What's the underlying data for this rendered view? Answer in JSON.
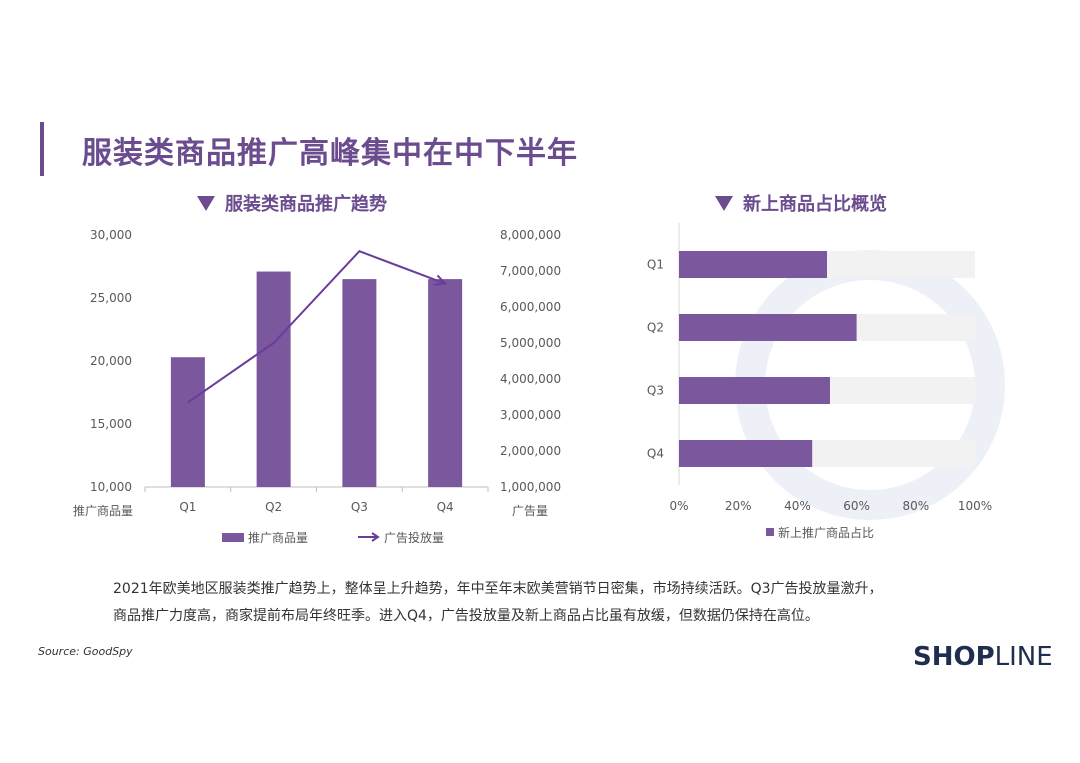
{
  "page": {
    "title": "服装类商品推广高峰集中在中下半年",
    "left_chart_title": "服装类商品推广趋势",
    "right_chart_title": "新上商品占比概览",
    "description_line1": "2021年欧美地区服装类推广趋势上，整体呈上升趋势，年中至年末欧美营销节日密集，市场持续活跃。Q3广告投放量激升，",
    "description_line2": "商品推广力度高，商家提前布局年终旺季。进入Q4，广告投放量及新上商品占比虽有放缓，但数据仍保持在高位。",
    "source": "Source: GoodSpy",
    "logo_text_bold": "SHOP",
    "logo_text_thin": "LINE"
  },
  "colors": {
    "purple": "#7b579e",
    "line_purple": "#6a3d9a",
    "track_gray": "#f2f2f2",
    "title_purple": "#6a4c8f"
  },
  "chart_data": [
    {
      "type": "bar",
      "subtype": "bar+line combo",
      "title": "服装类商品推广趋势",
      "categories": [
        "Q1",
        "Q2",
        "Q3",
        "Q4"
      ],
      "series": [
        {
          "name": "推广商品量",
          "type": "bar",
          "axis": "left",
          "values": [
            20300,
            27100,
            26500,
            26500
          ]
        },
        {
          "name": "广告投放量",
          "type": "line",
          "axis": "right",
          "values": [
            3350000,
            5000000,
            7550000,
            6650000
          ]
        }
      ],
      "ylabel_left": "推广商品量",
      "ylabel_right": "广告量",
      "ylim_left": [
        10000,
        30000
      ],
      "ylim_right": [
        1000000,
        8000000
      ],
      "yticks_left": [
        "10,000",
        "15,000",
        "20,000",
        "25,000",
        "30,000"
      ],
      "yticks_right": [
        "1,000,000",
        "2,000,000",
        "3,000,000",
        "4,000,000",
        "5,000,000",
        "6,000,000",
        "7,000,000",
        "8,000,000"
      ],
      "legend": [
        "推广商品量",
        "广告投放量"
      ],
      "legend_position": "bottom",
      "grid": false
    },
    {
      "type": "bar",
      "orientation": "horizontal",
      "title": "新上商品占比概览",
      "categories": [
        "Q1",
        "Q2",
        "Q3",
        "Q4"
      ],
      "series": [
        {
          "name": "新上推广商品占比",
          "values": [
            50,
            60,
            51,
            45
          ]
        }
      ],
      "xlim": [
        0,
        100
      ],
      "xticks": [
        "0%",
        "20%",
        "40%",
        "60%",
        "80%",
        "100%"
      ],
      "legend": [
        "新上推广商品占比"
      ],
      "legend_position": "bottom",
      "grid": false
    }
  ]
}
